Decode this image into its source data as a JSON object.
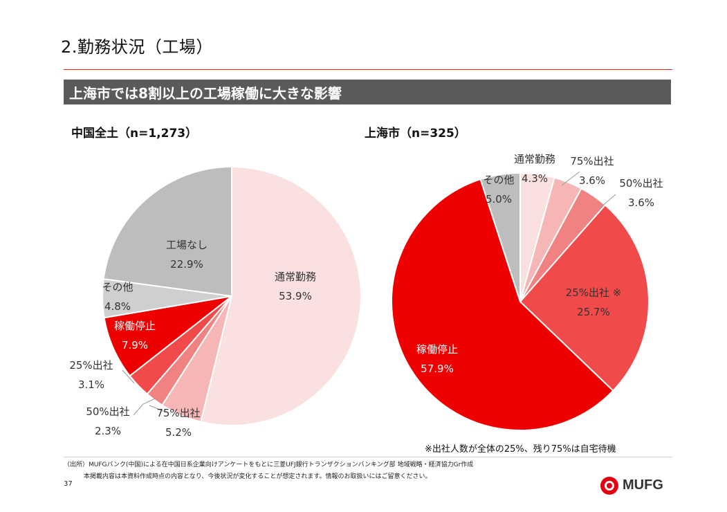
{
  "page": {
    "title": "2.勤務状況（工場）",
    "banner": "上海市では8割以上の工場稼働に大きな影響",
    "footnote": "※出社人数が全体の25%、残り75%は自宅待機",
    "source": "（出所）MUFGバンク(中国)による在中国日系企業向けアンケートをもとに三菱UFJ銀行トランザクションバンキング部 地域戦略・経済協力Gr作成",
    "disclaimer": "本掲載内容は本資料作成時点の内容となり、今後状況が変化することが想定されます。情報のお取扱いにはご留意ください。",
    "page_number": "37",
    "logo_text": "MUFG"
  },
  "chart_data": [
    {
      "type": "pie",
      "title": "中国全土（n=1,273）",
      "slices": [
        {
          "label": "通常勤務",
          "value": 53.9,
          "display": "53.9%",
          "color": "#fbe0e0"
        },
        {
          "label": "75%出社",
          "value": 5.2,
          "display": "5.2%",
          "color": "#f6b6b6"
        },
        {
          "label": "50%出社",
          "value": 2.3,
          "display": "2.3%",
          "color": "#f08282"
        },
        {
          "label": "25%出社",
          "value": 3.1,
          "display": "3.1%",
          "color": "#f04a4a"
        },
        {
          "label": "稼働停止",
          "value": 7.9,
          "display": "7.9%",
          "color": "#ee0000"
        },
        {
          "label": "その他",
          "value": 4.8,
          "display": "4.8%",
          "color": "#cfcfcf"
        },
        {
          "label": "工場なし",
          "value": 22.9,
          "display": "22.9%",
          "color": "#bdbdbd"
        }
      ]
    },
    {
      "type": "pie",
      "title": "上海市（n=325）",
      "slices": [
        {
          "label": "通常勤務",
          "value": 4.3,
          "display": "4.3%",
          "color": "#fbe0e0"
        },
        {
          "label": "75%出社",
          "value": 3.6,
          "display": "3.6%",
          "color": "#f6b6b6"
        },
        {
          "label": "50%出社",
          "value": 3.6,
          "display": "3.6%",
          "color": "#f08282"
        },
        {
          "label": "25%出社 ※",
          "value": 25.7,
          "display": "25.7%",
          "color": "#f04a4a"
        },
        {
          "label": "稼働停止",
          "value": 57.9,
          "display": "57.9%",
          "color": "#ee0000"
        },
        {
          "label": "その他",
          "value": 5.0,
          "display": "5.0%",
          "color": "#bdbdbd"
        }
      ]
    }
  ]
}
